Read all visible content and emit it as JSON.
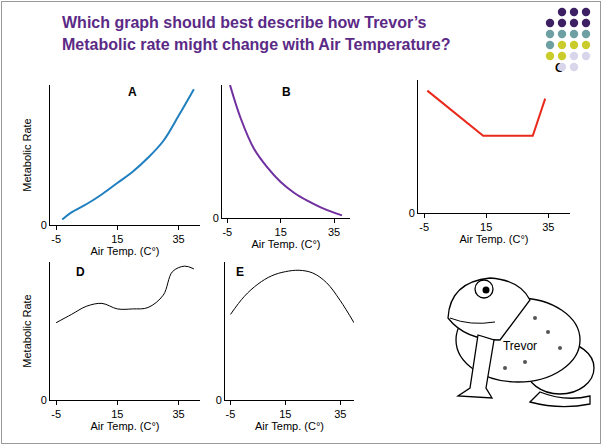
{
  "title": "Which graph should best describe how Trevor’s Metabolic rate might change with Air Temperature?",
  "image_label": "Trevor",
  "chart_data": [
    {
      "type": "line",
      "title": "A",
      "xlabel": "Air Temp. (C°)",
      "ylabel": "Metabolic Rate",
      "x": [
        -3,
        0,
        5,
        10,
        15,
        20,
        25,
        30,
        35,
        40
      ],
      "values": [
        0.4,
        0.9,
        1.5,
        2.2,
        3.0,
        3.8,
        4.8,
        6.0,
        7.8,
        9.7
      ],
      "color": "#1f7fbf",
      "line_style": "smooth",
      "xlim": [
        -7,
        42
      ],
      "ylim": [
        0,
        10
      ],
      "xticks": [
        -5,
        15,
        35
      ],
      "yticks": [
        0
      ]
    },
    {
      "type": "line",
      "title": "B",
      "xlabel": "Air Temp. (C°)",
      "x": [
        -4,
        0,
        5,
        10,
        15,
        20,
        25,
        30,
        35,
        38
      ],
      "values": [
        10,
        7.5,
        5.2,
        3.8,
        2.7,
        1.9,
        1.3,
        0.8,
        0.4,
        0.2
      ],
      "color": "#7030a0",
      "line_style": "smooth",
      "xlim": [
        -7,
        41
      ],
      "ylim": [
        0,
        10
      ],
      "xticks": [
        -5,
        15,
        35
      ],
      "yticks": [
        0
      ]
    },
    {
      "type": "line",
      "title": "C",
      "x": [
        -4,
        14,
        30,
        34
      ],
      "values": [
        9.2,
        5.8,
        5.8,
        8.6
      ],
      "color": "#e8291c",
      "line_style": "straight",
      "xlabel": "Air Temp. (C°)",
      "xlim": [
        -7,
        42
      ],
      "ylim": [
        0,
        10
      ],
      "xticks": [
        -5,
        15,
        35
      ],
      "yticks": [
        0
      ]
    },
    {
      "type": "line",
      "title": "D",
      "xlabel": "Air Temp. (C°)",
      "ylabel": "Metabolic Rate",
      "x": [
        -5,
        0,
        5,
        10,
        15,
        20,
        25,
        30,
        33,
        37,
        40
      ],
      "values": [
        5.6,
        6.2,
        6.8,
        7.0,
        6.6,
        6.6,
        6.7,
        7.6,
        9.3,
        9.7,
        9.5
      ],
      "color": "#000000",
      "line_style": "smooth",
      "xlim": [
        -7,
        42
      ],
      "ylim": [
        0,
        10
      ],
      "xticks": [
        -5,
        15,
        35
      ],
      "yticks": [
        0
      ]
    },
    {
      "type": "line",
      "title": "E",
      "xlabel": "Air Temp. (C°)",
      "x": [
        -5,
        0,
        5,
        10,
        15,
        20,
        25,
        30,
        35,
        40
      ],
      "values": [
        6.2,
        7.5,
        8.4,
        9.0,
        9.3,
        9.4,
        9.2,
        8.5,
        7.2,
        5.6
      ],
      "color": "#000000",
      "line_style": "smooth",
      "xlim": [
        -7,
        40
      ],
      "ylim": [
        0,
        10
      ],
      "xticks": [
        -5,
        15,
        35
      ],
      "yticks": [
        0
      ]
    }
  ]
}
